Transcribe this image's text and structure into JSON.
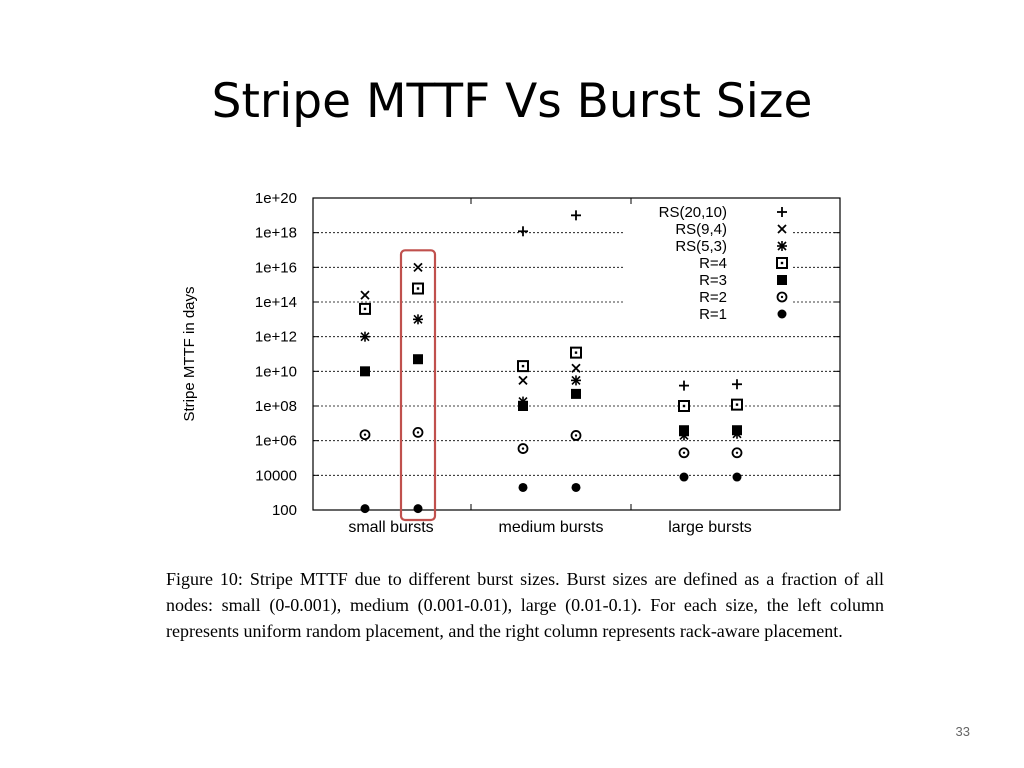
{
  "slide": {
    "title": "Stripe MTTF Vs Burst Size",
    "page_number": "33"
  },
  "figure": {
    "caption_lines": [
      "Figure 10: Stripe MTTF due to different burst sizes. Burst sizes",
      "are defined as a fraction of all nodes: small (0-0.001), medium",
      "(0.001-0.01), large (0.01-0.1).  For each size, the left column",
      "represents uniform random placement, and the right column",
      "represents rack-aware placement."
    ],
    "highlight_box_color": "#c0504d"
  },
  "chart_data": {
    "type": "scatter",
    "title": "",
    "xlabel": "",
    "ylabel": "Stripe MTTF in days",
    "y_scale": "log",
    "ylim": [
      100,
      1e+20
    ],
    "y_ticks": [
      {
        "value": 100,
        "label": "100"
      },
      {
        "value": 10000,
        "label": "10000"
      },
      {
        "value": 1000000.0,
        "label": "1e+06"
      },
      {
        "value": 100000000.0,
        "label": "1e+08"
      },
      {
        "value": 10000000000.0,
        "label": "1e+10"
      },
      {
        "value": 1000000000000.0,
        "label": "1e+12"
      },
      {
        "value": 100000000000000.0,
        "label": "1e+14"
      },
      {
        "value": 1e+16,
        "label": "1e+16"
      },
      {
        "value": 1e+18,
        "label": "1e+18"
      },
      {
        "value": 1e+20,
        "label": "1e+20"
      }
    ],
    "categories": [
      "small bursts",
      "medium bursts",
      "large bursts"
    ],
    "columns": [
      "uniform random placement",
      "rack-aware placement"
    ],
    "grid": "horizontal dashed",
    "legend_position": "top-right",
    "highlight": {
      "category": "small bursts",
      "column": "rack-aware placement"
    },
    "series": [
      {
        "name": "RS(20,10)",
        "marker": "plus",
        "values": [
          [
            null,
            null
          ],
          [
            1.2e+18,
            1e+19
          ],
          [
            1500000000.0,
            1800000000.0
          ]
        ]
      },
      {
        "name": "RS(9,4)",
        "marker": "cross",
        "values": [
          [
            250000000000000.0,
            1e+16
          ],
          [
            3000000000.0,
            15000000000.0
          ],
          [
            null,
            null
          ]
        ]
      },
      {
        "name": "RS(5,3)",
        "marker": "asterisk",
        "values": [
          [
            1000000000000.0,
            10000000000000.0
          ],
          [
            180000000.0,
            3000000000.0
          ],
          [
            2000000.0,
            2500000.0
          ]
        ]
      },
      {
        "name": "R=4",
        "marker": "box-dot",
        "values": [
          [
            40000000000000.0,
            600000000000000.0
          ],
          [
            20000000000.0,
            120000000000.0
          ],
          [
            100000000.0,
            120000000.0
          ]
        ]
      },
      {
        "name": "R=3",
        "marker": "filled-square",
        "values": [
          [
            10000000000.0,
            50000000000.0
          ],
          [
            100000000.0,
            500000000.0
          ],
          [
            4000000.0,
            4000000.0
          ]
        ]
      },
      {
        "name": "R=2",
        "marker": "circle-dot",
        "values": [
          [
            2200000.0,
            3000000.0
          ],
          [
            350000.0,
            2000000.0
          ],
          [
            200000.0,
            200000.0
          ]
        ]
      },
      {
        "name": "R=1",
        "marker": "filled-circle",
        "values": [
          [
            120,
            120
          ],
          [
            2000.0,
            2000.0
          ],
          [
            8000.0,
            8000.0
          ]
        ]
      }
    ]
  }
}
